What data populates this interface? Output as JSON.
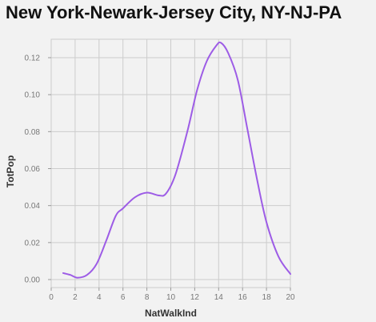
{
  "chart_data": {
    "type": "line",
    "title": "New York-Newark-Jersey City, NY-NJ-PA",
    "xlabel": "NatWalkInd",
    "ylabel": "TotPop",
    "xlim": [
      0,
      20
    ],
    "ylim": [
      0,
      0.13
    ],
    "x_ticks": [
      "0",
      "2",
      "4",
      "6",
      "8",
      "10",
      "12",
      "14",
      "16",
      "18",
      "20"
    ],
    "y_ticks": [
      "0.00",
      "0.02",
      "0.04",
      "0.06",
      "0.08",
      "0.10",
      "0.12"
    ],
    "grid": true,
    "series": [
      {
        "color": "#9d5ce6",
        "x": [
          1.0,
          1.6,
          2.2,
          3.0,
          3.8,
          4.6,
          5.4,
          6.0,
          7.0,
          8.0,
          9.0,
          9.6,
          10.4,
          11.4,
          12.2,
          13.0,
          13.8,
          14.2,
          14.8,
          15.6,
          16.4,
          17.2,
          18.0,
          19.0,
          20.0
        ],
        "y": [
          0.0035,
          0.0025,
          0.001,
          0.0025,
          0.0085,
          0.021,
          0.0345,
          0.0385,
          0.0445,
          0.047,
          0.0455,
          0.0465,
          0.057,
          0.0805,
          0.1025,
          0.118,
          0.1265,
          0.128,
          0.1225,
          0.108,
          0.0815,
          0.0545,
          0.031,
          0.0125,
          0.003
        ]
      }
    ]
  }
}
